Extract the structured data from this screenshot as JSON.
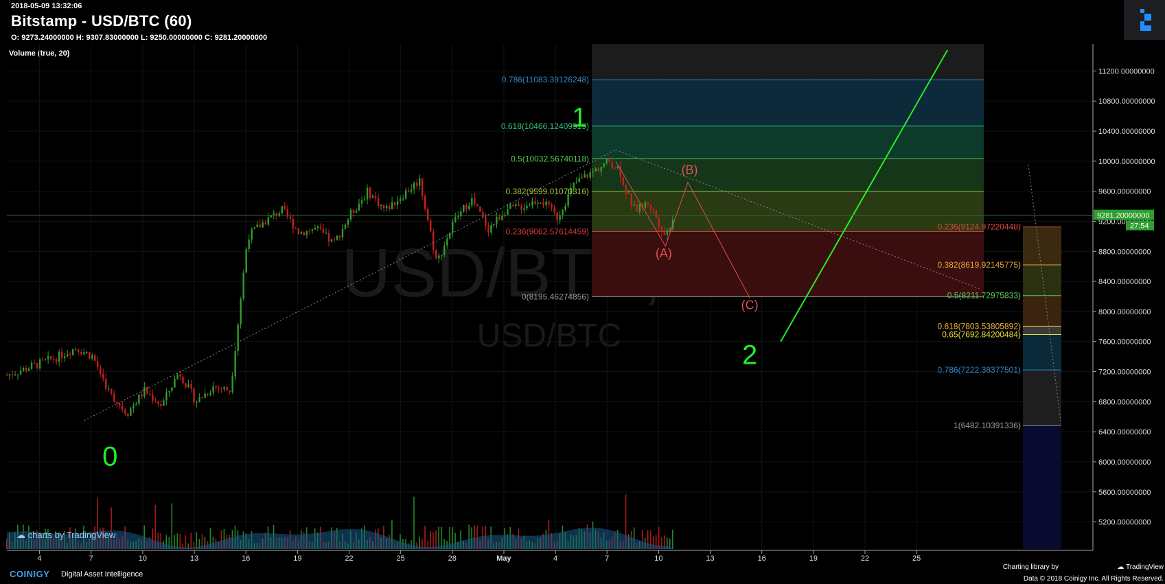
{
  "header": {
    "timestamp": "2018-05-09 13:32:06",
    "title": "Bitstamp - USD/BTC (60)",
    "ohlc": "O: 9273.24000000 H: 9307.83000000 L: 9250.00000000 C: 9281.20000000",
    "volume_label": "Volume (true, 20)"
  },
  "watermark": {
    "main": "USD/BTC, 60",
    "sub": "USD/BTC"
  },
  "price_badge": {
    "price": "9281.20000000",
    "countdown": "27:54"
  },
  "footer": {
    "brand": "COINIGY",
    "tagline": "Digital Asset Intelligence",
    "tv_badge": "charts by TradingView",
    "charting": "Charting library by",
    "tv_name": "TradingView",
    "copyright": "Data © 2018    Coinigy Inc. All Rights Reserved."
  },
  "colors": {
    "background": "#000000",
    "up": "#2e9e2e",
    "down": "#c81e1e",
    "wave": "#22ee22",
    "abc": "#e05050",
    "axis_text": "#dddddd"
  },
  "chart_data": {
    "type": "candlestick",
    "title": "Bitstamp - USD/BTC (60)",
    "x_ticks": [
      "4",
      "7",
      "10",
      "13",
      "16",
      "19",
      "22",
      "25",
      "28",
      "May",
      "4",
      "7",
      "10",
      "13",
      "16",
      "19",
      "22",
      "25"
    ],
    "y_ticks": [
      "11200.00000000",
      "10800.00000000",
      "10400.00000000",
      "10000.00000000",
      "9600.00000000",
      "9200.00000000",
      "8800.00000000",
      "8400.00000000",
      "8000.00000000",
      "7600.00000000",
      "7200.00000000",
      "6800.00000000",
      "6400.00000000",
      "6000.00000000",
      "5600.00000000",
      "5200.00000000"
    ],
    "y_tick_values": [
      11200,
      10800,
      10400,
      10000,
      9600,
      9200,
      8800,
      8400,
      8000,
      7600,
      7200,
      6800,
      6400,
      6000,
      5600,
      5200
    ],
    "ylim": [
      4840,
      11560
    ],
    "last_price": 9281.2,
    "price_path": [
      [
        0,
        7150
      ],
      [
        3,
        7400
      ],
      [
        4,
        7520
      ],
      [
        5,
        7400
      ],
      [
        6,
        6900
      ],
      [
        7,
        6650
      ],
      [
        8,
        6950
      ],
      [
        9,
        6750
      ],
      [
        10,
        7200
      ],
      [
        11,
        6800
      ],
      [
        12,
        7000
      ],
      [
        13,
        6950
      ],
      [
        14,
        9000
      ],
      [
        15,
        9200
      ],
      [
        16,
        9350
      ],
      [
        17,
        9050
      ],
      [
        18,
        9100
      ],
      [
        19,
        8900
      ],
      [
        20,
        9300
      ],
      [
        21,
        9600
      ],
      [
        22,
        9350
      ],
      [
        23,
        9550
      ],
      [
        24,
        9750
      ],
      [
        25,
        8650
      ],
      [
        26,
        9200
      ],
      [
        27,
        9500
      ],
      [
        28,
        9100
      ],
      [
        29,
        9350
      ],
      [
        30,
        9400
      ],
      [
        31,
        9500
      ],
      [
        32,
        9250
      ],
      [
        33,
        9700
      ],
      [
        34,
        9850
      ],
      [
        35,
        10000
      ],
      [
        35.6,
        9900
      ],
      [
        36,
        9600
      ],
      [
        36.5,
        9350
      ],
      [
        37.3,
        9450
      ],
      [
        38,
        9150
      ],
      [
        38.3,
        9000
      ],
      [
        38.8,
        9300
      ]
    ],
    "fib_retracement": [
      {
        "label": "0.786(11083.39126248)",
        "value": 11083.39126248,
        "color": "#2f86c9"
      },
      {
        "label": "0.618(10466.12409919)",
        "value": 10466.12409919,
        "color": "#35c47b"
      },
      {
        "label": "0.5(10032.56740118)",
        "value": 10032.56740118,
        "color": "#4ec84e"
      },
      {
        "label": "0.382(9599.01070316)",
        "value": 9599.01070316,
        "color": "#a0c23a"
      },
      {
        "label": "0.236(9062.57614459)",
        "value": 9062.57614459,
        "color": "#d23a3a"
      },
      {
        "label": "0(8195.46274856)",
        "value": 8195.46274856,
        "color": "#9a9a9a"
      }
    ],
    "fib_extension": [
      {
        "label": "0.236(9124.97220448)",
        "value": 9124.97220448,
        "color": "#d94b3a"
      },
      {
        "label": "0.382(8619.92145775)",
        "value": 8619.92145775,
        "color": "#e8a63a"
      },
      {
        "label": "0.5(8211.72975833)",
        "value": 8211.72975833,
        "color": "#55c85a"
      },
      {
        "label": "0.618(7803.53805892)",
        "value": 7803.53805892,
        "color": "#e8b23a"
      },
      {
        "label": "0.65(7692.84200484)",
        "value": 7692.84200484,
        "color": "#f0dc3a"
      },
      {
        "label": "0.786(7222.38377501)",
        "value": 7222.38377501,
        "color": "#2f86c9"
      },
      {
        "label": "1(6482.10391336)",
        "value": 6482.10391336,
        "color": "#9a9a9a"
      }
    ],
    "wave_labels": [
      {
        "text": "0",
        "x": 6,
        "y": 5950
      },
      {
        "text": "1",
        "x": 33.3,
        "y": 10460
      },
      {
        "text": "2",
        "x": 43.2,
        "y": 7300
      }
    ],
    "abc_labels": [
      {
        "text": "(A)",
        "x": 38.2,
        "y": 8720
      },
      {
        "text": "(B)",
        "x": 39.7,
        "y": 9830
      },
      {
        "text": "(C)",
        "x": 43.2,
        "y": 8030
      }
    ],
    "abc_path": [
      [
        35.4,
        10000
      ],
      [
        38.3,
        8870
      ],
      [
        39.6,
        9720
      ],
      [
        43.2,
        8180
      ]
    ],
    "trend_line": [
      [
        45,
        7600
      ],
      [
        54.7,
        11480
      ]
    ]
  }
}
